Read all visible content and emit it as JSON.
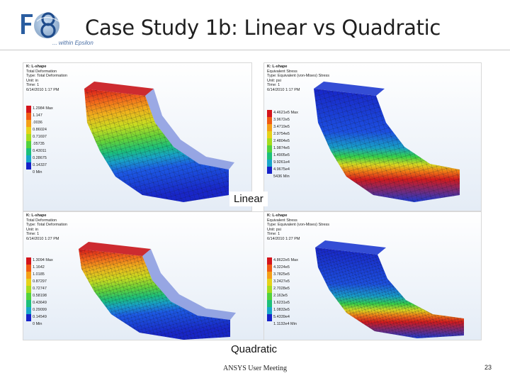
{
  "header": {
    "title": "Case Study 1b: Linear vs Quadratic",
    "tagline": "... within Epsilon"
  },
  "labels": {
    "linear": "Linear",
    "quadratic": "Quadratic"
  },
  "footer": {
    "text": "ANSYS User Meeting",
    "page_number": "23"
  },
  "panels": {
    "lin_def": {
      "info": [
        "K: L-shape",
        "Total Deformation",
        "Type: Total Deformation",
        "Unit: in",
        "Time: 1",
        "6/14/2010 1:17 PM"
      ],
      "ticks": [
        "1.2984 Max",
        "1.147",
        ".0036",
        "0.86024",
        "0.71697",
        ".05735",
        "0.43011",
        "0.28675",
        "0.14337",
        "0 Min"
      ]
    },
    "lin_str": {
      "info": [
        "K: L-shape",
        "Equivalent Stress",
        "Type: Equivalent (von-Mises) Stress",
        "Unit: psi",
        "Time: 1",
        "6/14/2010 1:17 PM"
      ],
      "ticks": [
        "4.4621e5 Max",
        "3.9672e5",
        "3.4719e5",
        "2.9754e5",
        "2.4804e5",
        "1.9874e5",
        "1.4905e5",
        "9.9261e4",
        "4.9675e4",
        "5436 Min"
      ]
    },
    "quad_def": {
      "info": [
        "K: L-shape",
        "Total Deformation",
        "Type: Total Deformation",
        "Unit: in",
        "Time: 1",
        "6/14/2010 1:27 PM"
      ],
      "ticks": [
        "1.3094 Max",
        "1.1642",
        "1.0185",
        "0.87297",
        "0.72747",
        "0.58198",
        "0.43649",
        "0.29099",
        "0.14549",
        "0 Min"
      ]
    },
    "quad_str": {
      "info": [
        "K: L-shape",
        "Equivalent Stress",
        "Type: Equivalent (von-Mises) Stress",
        "Unit: psi",
        "Time: 1",
        "6/14/2010 1:27 PM"
      ],
      "ticks": [
        "4.8622e5 Max",
        "4.3224e5",
        "3.7825e5",
        "3.2427e5",
        "2.7028e5",
        "2.163e5",
        "1.6231e5",
        "1.0833e5",
        "5.4339e4",
        "1.1132e4 Min"
      ]
    }
  },
  "colors": {
    "scale": [
      "#d4141b",
      "#f05a14",
      "#f4a018",
      "#e6d21a",
      "#a6dc1e",
      "#52d23c",
      "#1cc07a",
      "#18a6c8",
      "#1c5ce6",
      "#1622c8"
    ],
    "mesh_edge": "#1a1a2a",
    "background_top": "#ffffff",
    "background_bottom": "#e6eef8"
  }
}
